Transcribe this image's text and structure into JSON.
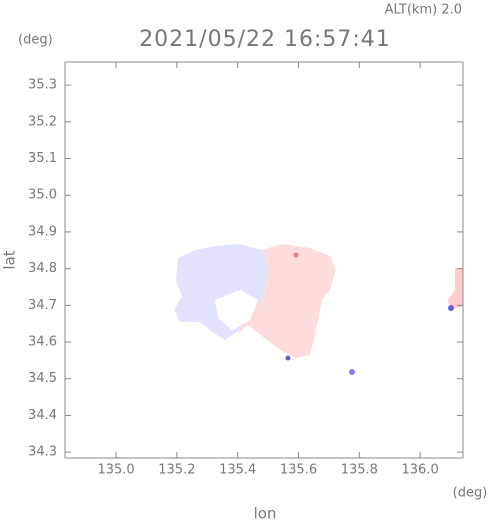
{
  "chart_data": {
    "type": "map",
    "title": "2021/05/22 16:57:41",
    "subtitle": "ALT(km)  2.0",
    "xlabel": "lon",
    "ylabel": "lat",
    "x_unit": "(deg)",
    "y_unit": "(deg)",
    "xlim": [
      134.832,
      136.141
    ],
    "ylim": [
      34.284,
      35.363
    ],
    "xticks": [
      {
        "value": 135.0,
        "label": "135.0"
      },
      {
        "value": 135.2,
        "label": "135.2"
      },
      {
        "value": 135.4,
        "label": "135.4"
      },
      {
        "value": 135.6,
        "label": "135.6"
      },
      {
        "value": 135.8,
        "label": "135.8"
      },
      {
        "value": 136.0,
        "label": "136.0"
      }
    ],
    "yticks": [
      {
        "value": 34.3,
        "label": "34.3"
      },
      {
        "value": 34.4,
        "label": "34.4"
      },
      {
        "value": 34.5,
        "label": "34.5"
      },
      {
        "value": 34.6,
        "label": "34.6"
      },
      {
        "value": 34.7,
        "label": "34.7"
      },
      {
        "value": 34.8,
        "label": "34.8"
      },
      {
        "value": 34.9,
        "label": "34.9"
      },
      {
        "value": 35.0,
        "label": "35.0"
      },
      {
        "value": 35.1,
        "label": "35.1"
      },
      {
        "value": 35.2,
        "label": "35.2"
      },
      {
        "value": 35.3,
        "label": "35.3"
      }
    ]
  }
}
